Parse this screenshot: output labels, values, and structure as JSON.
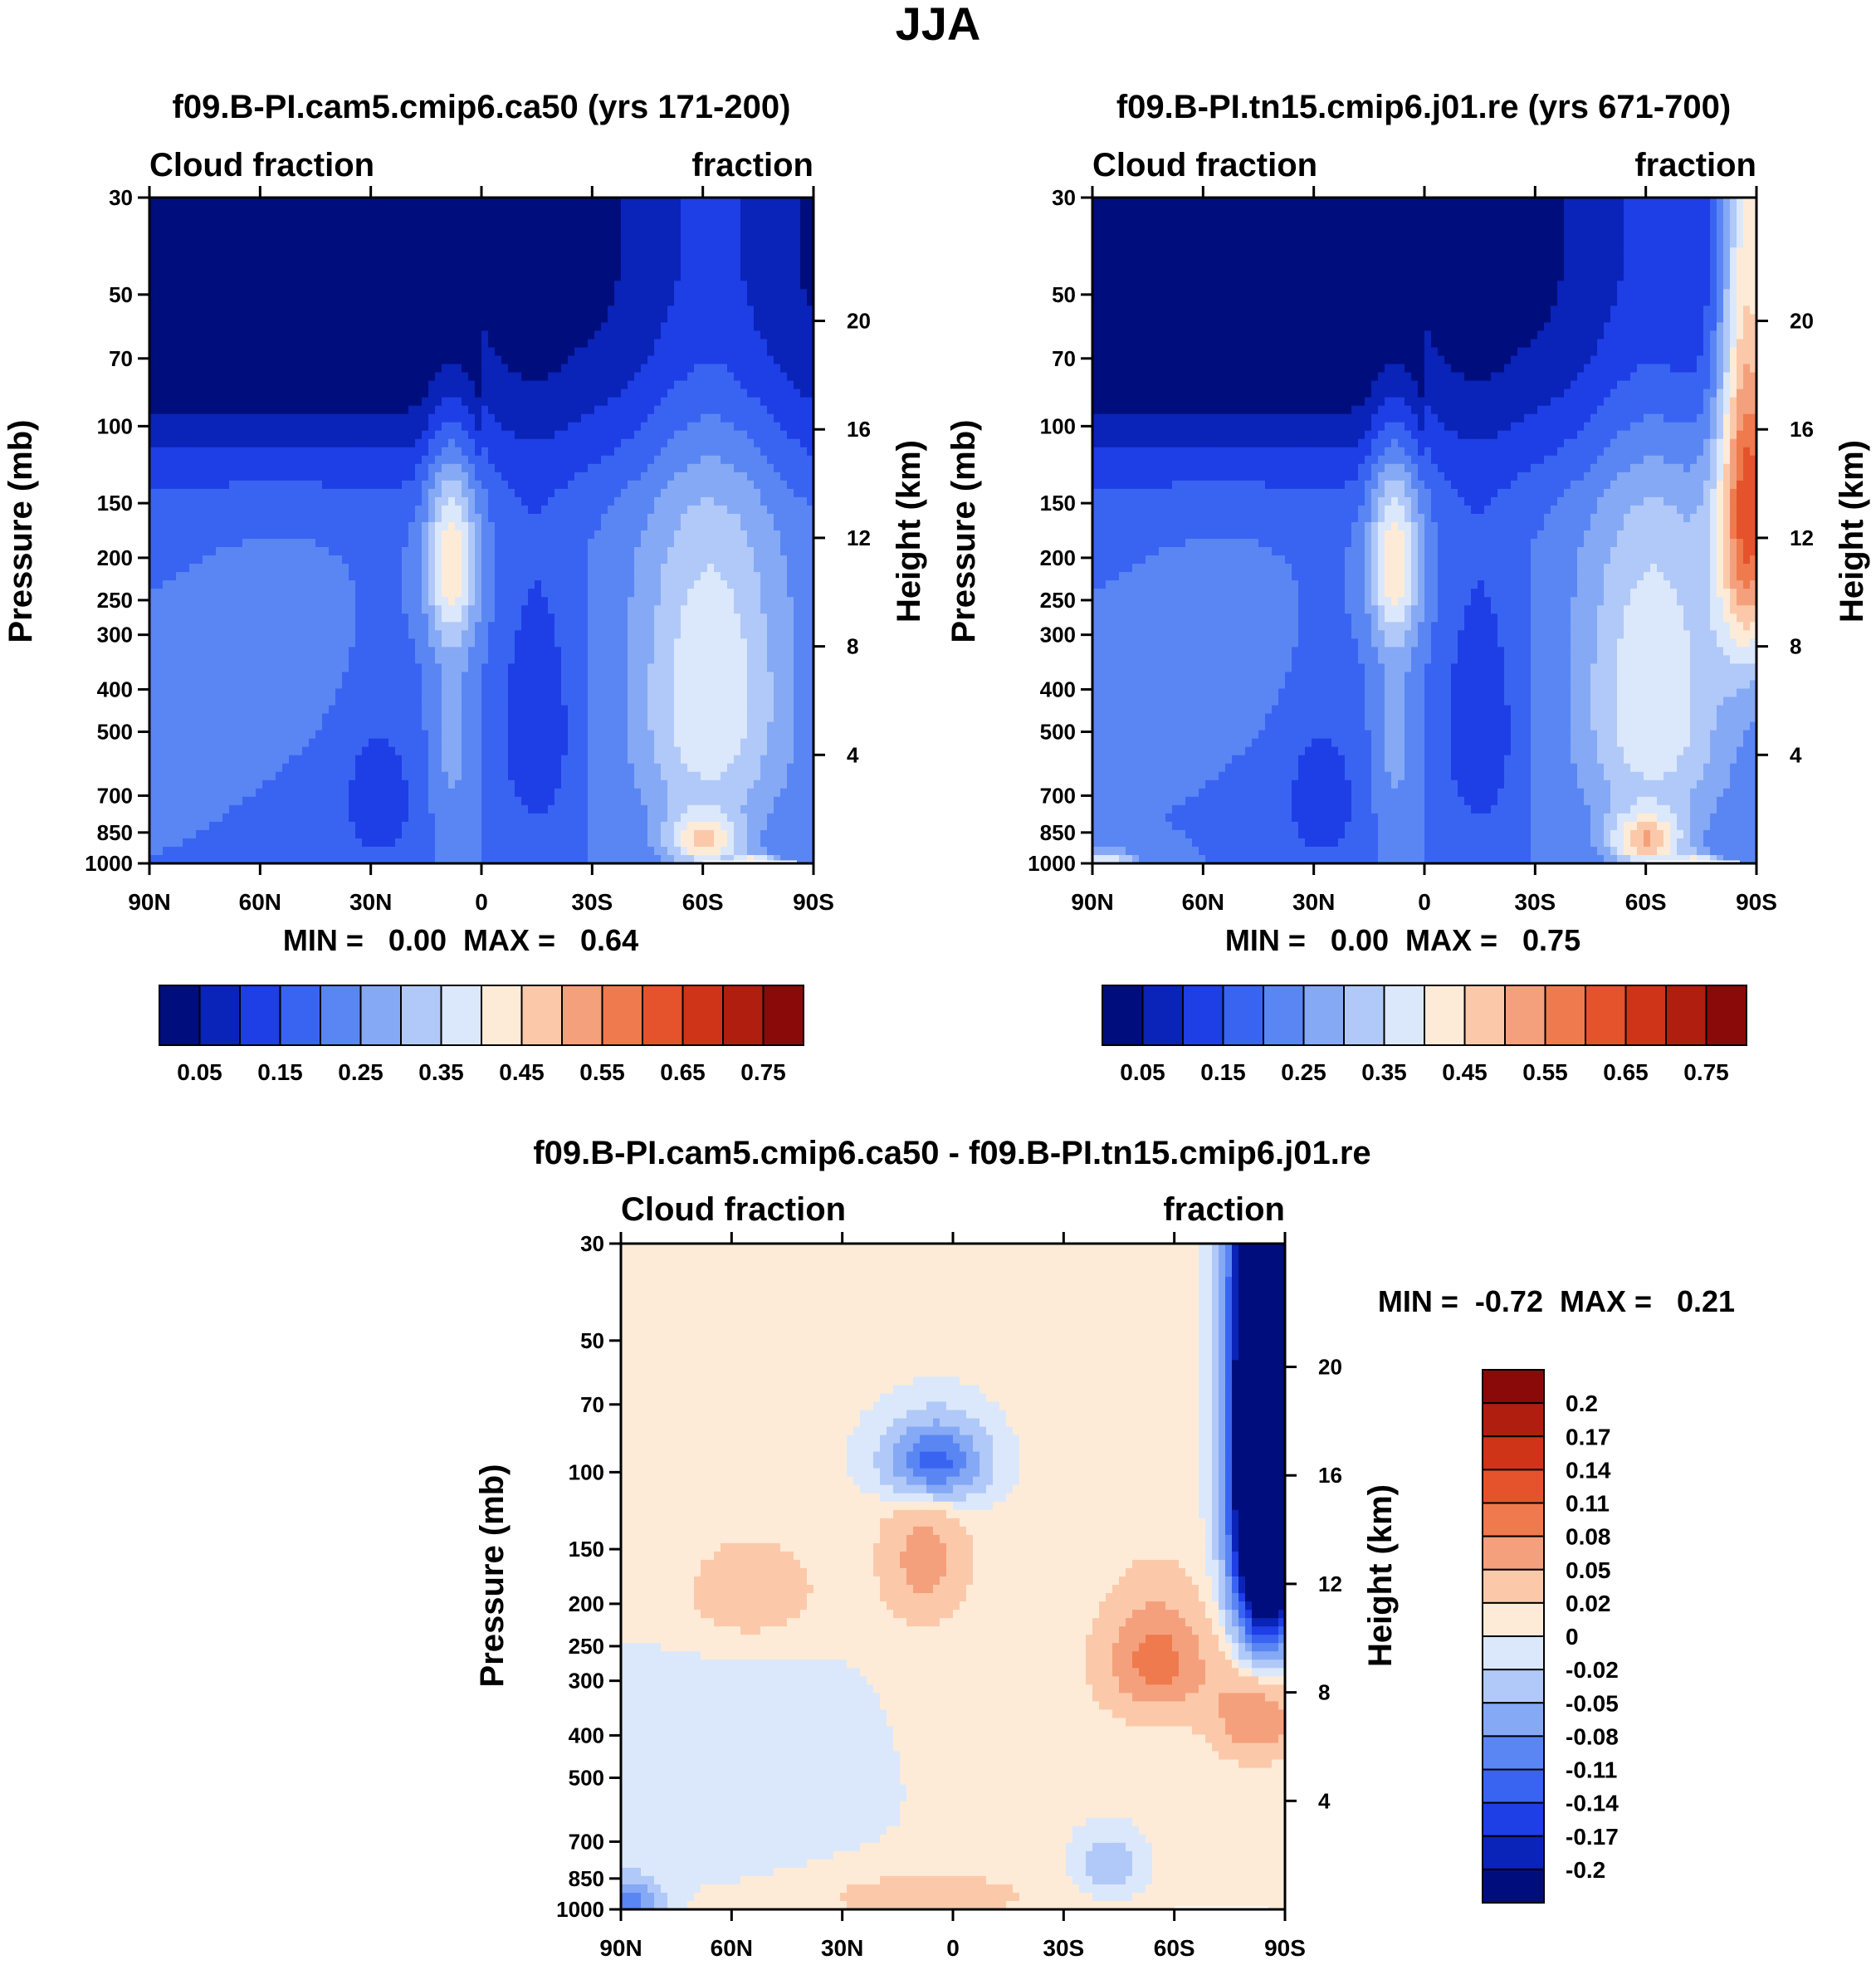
{
  "figure": {
    "title": "JJA"
  },
  "colors": {
    "abs_scale": [
      "#000e7d",
      "#0a23b8",
      "#1e3ee6",
      "#3964f2",
      "#5a86f4",
      "#85a9f5",
      "#b1c9f8",
      "#dbe8fb",
      "#fdebd8",
      "#fbc9aa",
      "#f5a07c",
      "#ef7a4e",
      "#e4532c",
      "#cf3418",
      "#b01e10",
      "#8a0a0a"
    ],
    "diff_scale": [
      "#000e7d",
      "#0a23b8",
      "#1e3ee6",
      "#3964f2",
      "#5a86f4",
      "#85a9f5",
      "#b1c9f8",
      "#dbe8fb",
      "#fdebd8",
      "#fbc9aa",
      "#f5a07c",
      "#ef7a4e",
      "#e4532c",
      "#cf3418",
      "#b01e10",
      "#8a0a0a"
    ]
  },
  "chart_data": [
    {
      "type": "heatmap",
      "id": "panel1",
      "title": "f09.B-PI.cam5.cmip6.ca50 (yrs 171-200)",
      "left_label": "Cloud fraction",
      "right_label": "fraction",
      "ylabel": "Pressure (mb)",
      "ylabel_right": "Height (km)",
      "x_ticks": [
        "90N",
        "60N",
        "30N",
        "0",
        "30S",
        "60S",
        "90S"
      ],
      "x_values": [
        90,
        60,
        30,
        0,
        -30,
        -60,
        -90
      ],
      "y_ticks": [
        "30",
        "50",
        "70",
        "100",
        "150",
        "200",
        "250",
        "300",
        "400",
        "500",
        "700",
        "850",
        "1000"
      ],
      "y_values": [
        30,
        50,
        70,
        100,
        150,
        200,
        250,
        300,
        400,
        500,
        700,
        850,
        1000
      ],
      "height_ticks": [
        "20",
        "16",
        "12",
        "8",
        "4"
      ],
      "height_values": [
        20,
        16,
        12,
        8,
        4
      ],
      "stats": "MIN =   0.00  MAX =   0.64",
      "zlim": [
        0.0,
        0.64
      ],
      "colorbar_labels": [
        "0.05",
        "0.15",
        "0.25",
        "0.35",
        "0.45",
        "0.55",
        "0.65",
        "0.75"
      ],
      "colorbar_levels": [
        0.05,
        0.1,
        0.15,
        0.2,
        0.25,
        0.3,
        0.35,
        0.4,
        0.45,
        0.5,
        0.55,
        0.6,
        0.65,
        0.7,
        0.75
      ]
    },
    {
      "type": "heatmap",
      "id": "panel2",
      "title": "f09.B-PI.tn15.cmip6.j01.re (yrs 671-700)",
      "left_label": "Cloud fraction",
      "right_label": "fraction",
      "ylabel": "Pressure (mb)",
      "ylabel_right": "Height (km)",
      "x_ticks": [
        "90N",
        "60N",
        "30N",
        "0",
        "30S",
        "60S",
        "90S"
      ],
      "x_values": [
        90,
        60,
        30,
        0,
        -30,
        -60,
        -90
      ],
      "y_ticks": [
        "30",
        "50",
        "70",
        "100",
        "150",
        "200",
        "250",
        "300",
        "400",
        "500",
        "700",
        "850",
        "1000"
      ],
      "y_values": [
        30,
        50,
        70,
        100,
        150,
        200,
        250,
        300,
        400,
        500,
        700,
        850,
        1000
      ],
      "height_ticks": [
        "20",
        "16",
        "12",
        "8",
        "4"
      ],
      "height_values": [
        20,
        16,
        12,
        8,
        4
      ],
      "stats": "MIN =   0.00  MAX =   0.75",
      "zlim": [
        0.0,
        0.75
      ],
      "colorbar_labels": [
        "0.05",
        "0.15",
        "0.25",
        "0.35",
        "0.45",
        "0.55",
        "0.65",
        "0.75"
      ],
      "colorbar_levels": [
        0.05,
        0.1,
        0.15,
        0.2,
        0.25,
        0.3,
        0.35,
        0.4,
        0.45,
        0.5,
        0.55,
        0.6,
        0.65,
        0.7,
        0.75
      ]
    },
    {
      "type": "heatmap",
      "id": "panel3",
      "title": "f09.B-PI.cam5.cmip6.ca50 - f09.B-PI.tn15.cmip6.j01.re",
      "left_label": "Cloud fraction",
      "right_label": "fraction",
      "ylabel": "Pressure (mb)",
      "ylabel_right": "Height (km)",
      "x_ticks": [
        "90N",
        "60N",
        "30N",
        "0",
        "30S",
        "60S",
        "90S"
      ],
      "x_values": [
        90,
        60,
        30,
        0,
        -30,
        -60,
        -90
      ],
      "y_ticks": [
        "30",
        "50",
        "70",
        "100",
        "150",
        "200",
        "250",
        "300",
        "400",
        "500",
        "700",
        "850",
        "1000"
      ],
      "y_values": [
        30,
        50,
        70,
        100,
        150,
        200,
        250,
        300,
        400,
        500,
        700,
        850,
        1000
      ],
      "height_ticks": [
        "20",
        "16",
        "12",
        "8",
        "4"
      ],
      "height_values": [
        20,
        16,
        12,
        8,
        4
      ],
      "stats": "MIN =  -0.72  MAX =   0.21",
      "zlim": [
        -0.72,
        0.21
      ],
      "colorbar_labels": [
        "0.2",
        "0.17",
        "0.14",
        "0.11",
        "0.08",
        "0.05",
        "0.02",
        "0",
        "-0.02",
        "-0.05",
        "-0.08",
        "-0.11",
        "-0.14",
        "-0.17",
        "-0.2"
      ],
      "colorbar_levels": [
        0.2,
        0.17,
        0.14,
        0.11,
        0.08,
        0.05,
        0.02,
        0,
        -0.02,
        -0.05,
        -0.08,
        -0.11,
        -0.14,
        -0.17,
        -0.2
      ]
    }
  ]
}
